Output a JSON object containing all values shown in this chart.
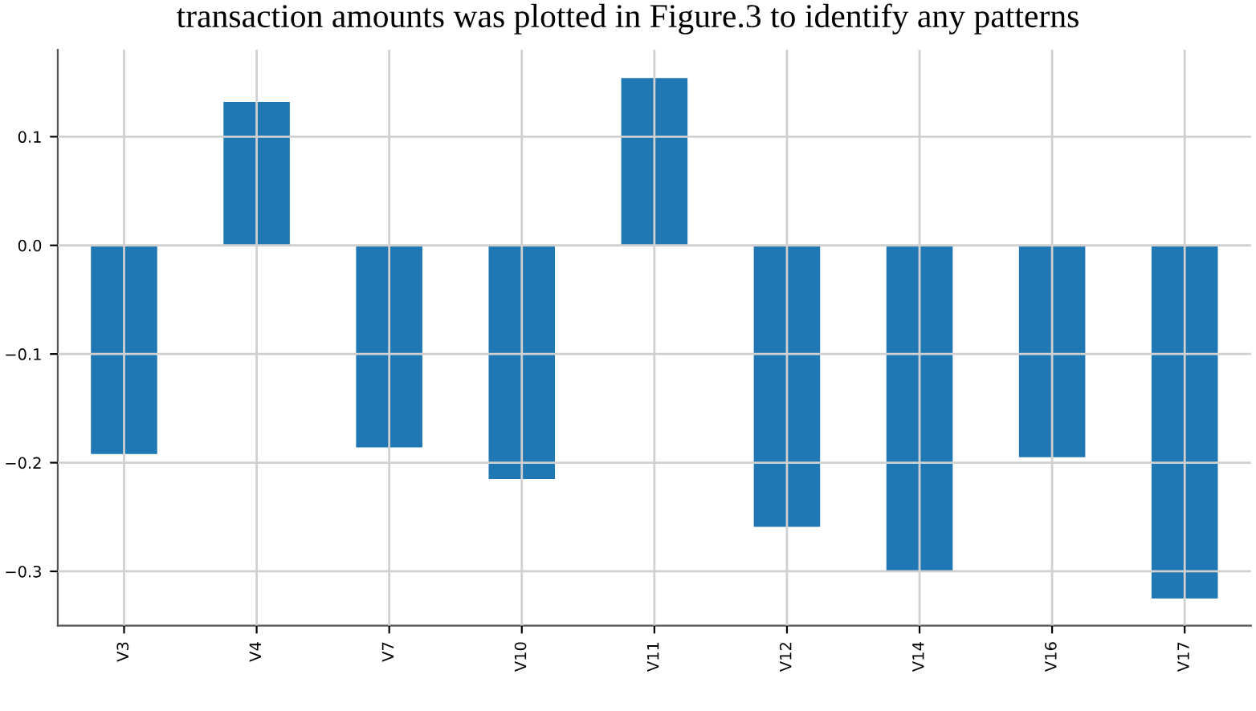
{
  "chart_data": {
    "type": "bar",
    "annotations": [
      "transaction amounts was plotted in Figure.3 to identify any patterns"
    ],
    "categories": [
      "V3",
      "V4",
      "V7",
      "V10",
      "V11",
      "V12",
      "V14",
      "V16",
      "V17"
    ],
    "values": [
      -0.192,
      0.132,
      -0.186,
      -0.215,
      0.154,
      -0.259,
      -0.3,
      -0.195,
      -0.325
    ],
    "color": "#1f77b4",
    "ylim": [
      -0.35,
      0.18
    ],
    "yticks": [
      {
        "value": -0.3,
        "label": "−0.3"
      },
      {
        "value": -0.2,
        "label": "−0.2"
      },
      {
        "value": -0.1,
        "label": "−0.1"
      },
      {
        "value": 0,
        "label": "0.0"
      },
      {
        "value": 0.1,
        "label": "0.1"
      }
    ],
    "grid": true
  }
}
